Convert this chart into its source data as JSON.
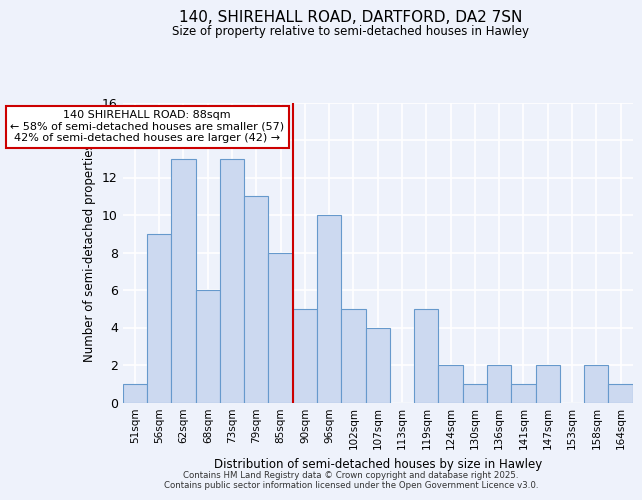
{
  "title1": "140, SHIREHALL ROAD, DARTFORD, DA2 7SN",
  "title2": "Size of property relative to semi-detached houses in Hawley",
  "xlabel": "Distribution of semi-detached houses by size in Hawley",
  "ylabel": "Number of semi-detached properties",
  "bin_labels": [
    "51sqm",
    "56sqm",
    "62sqm",
    "68sqm",
    "73sqm",
    "79sqm",
    "85sqm",
    "90sqm",
    "96sqm",
    "102sqm",
    "107sqm",
    "113sqm",
    "119sqm",
    "124sqm",
    "130sqm",
    "136sqm",
    "141sqm",
    "147sqm",
    "153sqm",
    "158sqm",
    "164sqm"
  ],
  "bar_values": [
    1,
    9,
    13,
    6,
    13,
    11,
    8,
    5,
    10,
    5,
    4,
    0,
    5,
    2,
    1,
    2,
    1,
    2,
    0,
    2,
    1
  ],
  "bar_color": "#ccd9f0",
  "bar_edge_color": "#6699cc",
  "vline_color": "#cc0000",
  "annotation_title": "140 SHIREHALL ROAD: 88sqm",
  "annotation_line1": "← 58% of semi-detached houses are smaller (57)",
  "annotation_line2": "42% of semi-detached houses are larger (42) →",
  "annotation_box_color": "#ffffff",
  "annotation_box_edge": "#cc0000",
  "footer1": "Contains HM Land Registry data © Crown copyright and database right 2025.",
  "footer2": "Contains public sector information licensed under the Open Government Licence v3.0.",
  "bg_color": "#eef2fb",
  "ylim": [
    0,
    16
  ],
  "yticks": [
    0,
    2,
    4,
    6,
    8,
    10,
    12,
    14,
    16
  ],
  "vline_bin_index": 7
}
